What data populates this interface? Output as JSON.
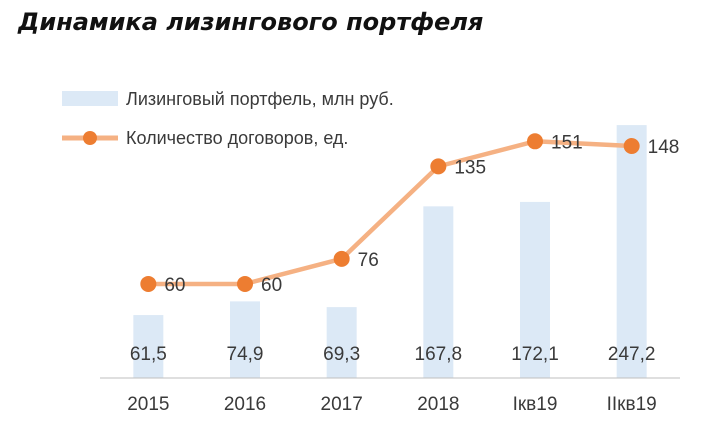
{
  "title": "Динамика лизингового портфеля",
  "chart_data": {
    "type": "bar",
    "categories": [
      "2015",
      "2016",
      "2017",
      "2018",
      "Iкв19",
      "IIкв19"
    ],
    "series": [
      {
        "name": "Лизинговый портфель, млн руб.",
        "type": "bar",
        "values": [
          61.5,
          74.9,
          69.3,
          167.8,
          172.1,
          247.2
        ],
        "labels": [
          "61,5",
          "74,9",
          "69,3",
          "167,8",
          "172,1",
          "247,2"
        ],
        "color": "#dce9f6"
      },
      {
        "name": "Количество договоров, ед.",
        "type": "line",
        "values": [
          60,
          60,
          76,
          135,
          151,
          148
        ],
        "labels": [
          "60",
          "60",
          "76",
          "135",
          "151",
          "148"
        ],
        "color": "#f5b183",
        "marker_color": "#ed7d31"
      }
    ],
    "ylim_bar": [
      0,
      260
    ],
    "ylim_line": [
      0,
      185
    ],
    "grid": false,
    "legend_position": "top-left"
  }
}
